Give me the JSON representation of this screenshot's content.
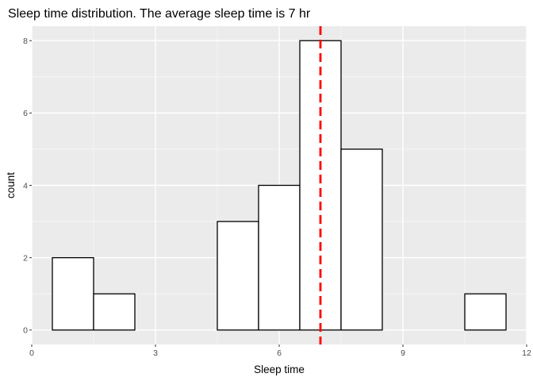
{
  "chart_data": {
    "type": "bar",
    "title": "Sleep time distribution. The average sleep time is  7  hr",
    "xlabel": "Sleep time",
    "ylabel": "count",
    "xlim": [
      0,
      12
    ],
    "ylim": [
      0,
      8
    ],
    "x_ticks": [
      0,
      3,
      6,
      9,
      12
    ],
    "y_ticks": [
      0,
      2,
      4,
      6,
      8
    ],
    "bin_width": 1,
    "bins": [
      {
        "center": 1,
        "count": 2
      },
      {
        "center": 2,
        "count": 1
      },
      {
        "center": 3,
        "count": 0
      },
      {
        "center": 4,
        "count": 0
      },
      {
        "center": 5,
        "count": 3
      },
      {
        "center": 6,
        "count": 4
      },
      {
        "center": 7,
        "count": 8
      },
      {
        "center": 8,
        "count": 5
      },
      {
        "center": 9,
        "count": 0
      },
      {
        "center": 10,
        "count": 0
      },
      {
        "center": 11,
        "count": 1
      }
    ],
    "mean_line": {
      "x": 7,
      "color": "#ff0000",
      "style": "dashed"
    },
    "panel_background": "#ebebeb",
    "grid": true,
    "bar_fill": "#ffffff",
    "bar_outline": "#000000"
  }
}
